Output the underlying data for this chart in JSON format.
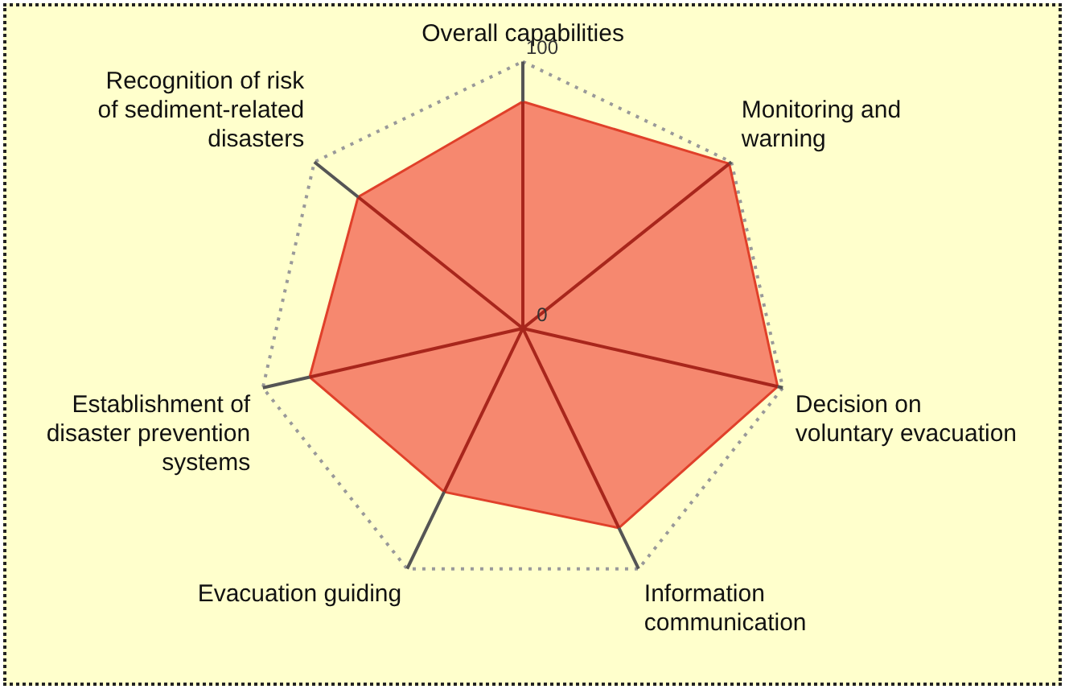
{
  "chart_data": {
    "type": "radar",
    "categories": [
      "Overall capabilities",
      "Monitoring and warning",
      "Decision on voluntary evacuation",
      "Information communication",
      "Evacuation guiding",
      "Establishment of disaster prevention systems",
      "Recognition of risk of sediment-related disasters"
    ],
    "series": [
      {
        "color": "#f4735e",
        "values": [
          85,
          99,
          98,
          83,
          68,
          82,
          79
        ]
      }
    ],
    "ylim": [
      0,
      100
    ],
    "yticks": [
      0,
      100
    ],
    "grid": true,
    "legend": false,
    "marker": "none"
  }
}
